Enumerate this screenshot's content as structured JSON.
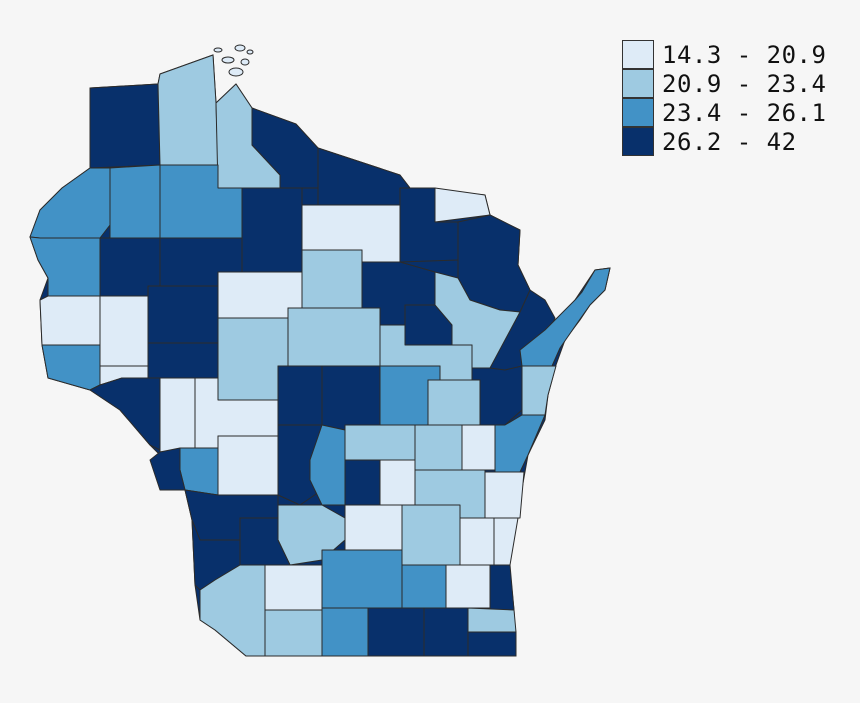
{
  "legend": {
    "bins": [
      {
        "label": "14.3 - 20.9",
        "color": "#deebf7"
      },
      {
        "label": "20.9 - 23.4",
        "color": "#9ecae1"
      },
      {
        "label": "23.4 - 26.1",
        "color": "#4292c6"
      },
      {
        "label": "26.2 - 42",
        "color": "#08306b"
      }
    ]
  },
  "colors": {
    "background": "#f6f6f6",
    "border": "#2b2b2b"
  }
}
